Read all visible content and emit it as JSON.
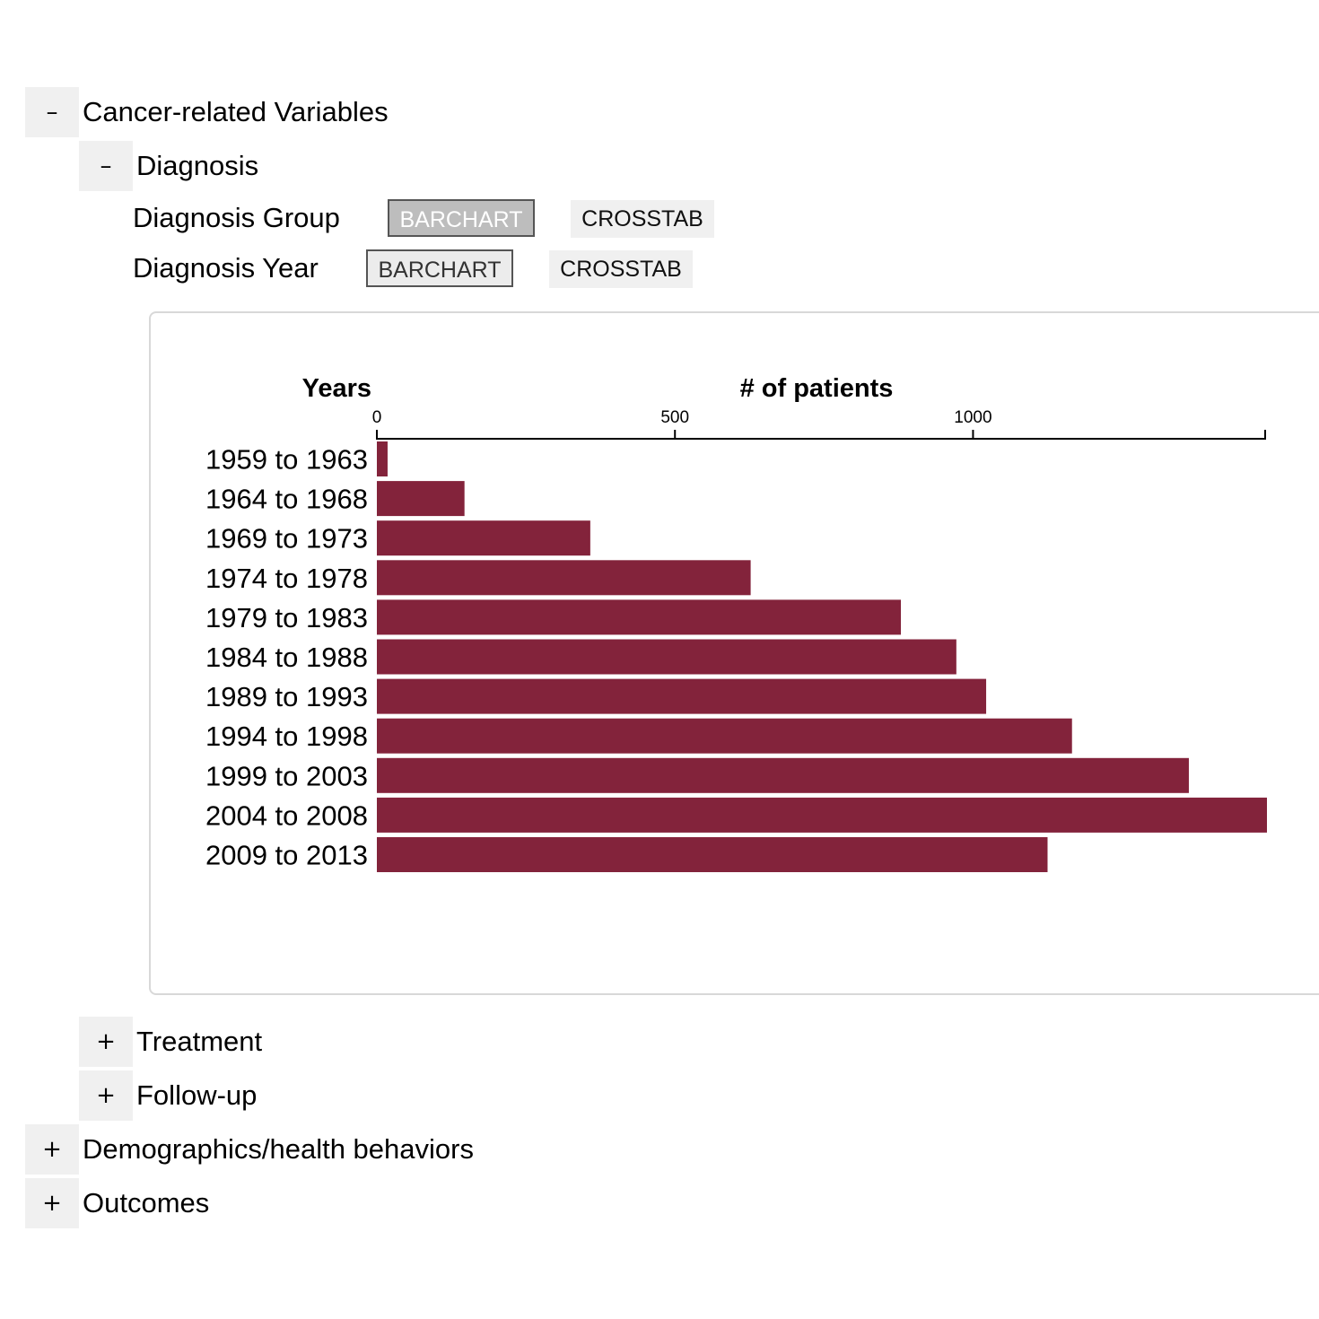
{
  "tree": {
    "cancer": {
      "toggle": "–",
      "label": "Cancer-related Variables"
    },
    "diagnosis": {
      "toggle": "–",
      "label": "Diagnosis"
    },
    "variables": [
      {
        "label": "Diagnosis Group",
        "barchart": "BARCHART",
        "crosstab": "CROSSTAB"
      },
      {
        "label": "Diagnosis Year",
        "barchart": "BARCHART",
        "crosstab": "CROSSTAB"
      }
    ],
    "treatment": {
      "toggle": "+",
      "label": "Treatment"
    },
    "followup": {
      "toggle": "+",
      "label": "Follow-up"
    },
    "demographics": {
      "toggle": "+",
      "label": "Demographics/health behaviors"
    },
    "outcomes": {
      "toggle": "+",
      "label": "Outcomes"
    }
  },
  "chart_data": {
    "type": "bar",
    "orientation": "horizontal",
    "ylabel": "Years",
    "xlabel": "# of patients",
    "xlim": [
      0,
      1490
    ],
    "xticks": [
      0,
      500,
      1000
    ],
    "bar_color": "#83233b",
    "categories": [
      "1959 to 1963",
      "1964 to 1968",
      "1969 to 1973",
      "1974 to 1978",
      "1979 to 1983",
      "1984 to 1988",
      "1989 to 1993",
      "1994 to 1998",
      "1999 to 2003",
      "2004 to 2008",
      "2009 to 2013"
    ],
    "values": [
      18,
      147,
      358,
      627,
      879,
      972,
      1022,
      1166,
      1362,
      1493,
      1125
    ],
    "grid": false
  }
}
